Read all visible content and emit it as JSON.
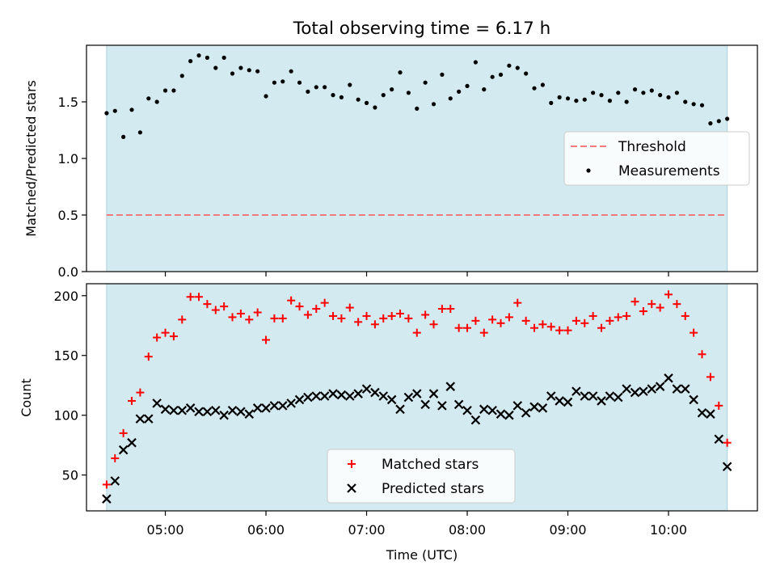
{
  "title": "Total observing time = 6.17 h",
  "colors": {
    "band": "#d3eaf0",
    "band_edge": "#aacfe0",
    "threshold": "#ef7b7b",
    "matched": "#ff0000",
    "predicted": "#000000",
    "measurements": "#000000"
  },
  "chart_data": [
    {
      "type": "scatter",
      "ylabel": "Matched/Predicted stars",
      "ylim": [
        0,
        2.0
      ],
      "yticks": [
        0.0,
        0.5,
        1.0,
        1.5
      ],
      "ytick_labels": [
        "0.0",
        "0.5",
        "1.0",
        "1.5"
      ],
      "xlim": [
        "04:13",
        "10:53"
      ],
      "observing_span": [
        "04:25",
        "10:35"
      ],
      "threshold": 0.5,
      "legend": {
        "placement": "center-right",
        "entries": [
          "Threshold",
          "Measurements"
        ]
      },
      "series": [
        {
          "name": "Measurements",
          "marker": "dot",
          "x": [
            "04:25",
            "04:30",
            "04:35",
            "04:40",
            "04:45",
            "04:50",
            "04:55",
            "05:00",
            "05:05",
            "05:10",
            "05:15",
            "05:20",
            "05:25",
            "05:30",
            "05:35",
            "05:40",
            "05:45",
            "05:50",
            "05:55",
            "06:00",
            "06:05",
            "06:10",
            "06:15",
            "06:20",
            "06:25",
            "06:30",
            "06:35",
            "06:40",
            "06:45",
            "06:50",
            "06:55",
            "07:00",
            "07:05",
            "07:10",
            "07:15",
            "07:20",
            "07:25",
            "07:30",
            "07:35",
            "07:40",
            "07:45",
            "07:50",
            "07:55",
            "08:00",
            "08:05",
            "08:10",
            "08:15",
            "08:20",
            "08:25",
            "08:30",
            "08:35",
            "08:40",
            "08:45",
            "08:50",
            "08:55",
            "09:00",
            "09:05",
            "09:10",
            "09:15",
            "09:20",
            "09:25",
            "09:30",
            "09:35",
            "09:40",
            "09:45",
            "09:50",
            "09:55",
            "10:00",
            "10:05",
            "10:10",
            "10:15",
            "10:20",
            "10:25",
            "10:30",
            "10:35"
          ],
          "y": [
            1.4,
            1.42,
            1.19,
            1.43,
            1.23,
            1.53,
            1.5,
            1.6,
            1.6,
            1.73,
            1.86,
            1.91,
            1.89,
            1.8,
            1.89,
            1.75,
            1.8,
            1.78,
            1.77,
            1.55,
            1.67,
            1.68,
            1.77,
            1.67,
            1.59,
            1.63,
            1.63,
            1.56,
            1.54,
            1.65,
            1.52,
            1.49,
            1.45,
            1.56,
            1.61,
            1.76,
            1.58,
            1.44,
            1.67,
            1.48,
            1.74,
            1.53,
            1.59,
            1.64,
            1.85,
            1.61,
            1.72,
            1.74,
            1.82,
            1.8,
            1.75,
            1.62,
            1.65,
            1.49,
            1.54,
            1.53,
            1.51,
            1.52,
            1.58,
            1.56,
            1.51,
            1.58,
            1.5,
            1.61,
            1.58,
            1.6,
            1.56,
            1.54,
            1.58,
            1.5,
            1.48,
            1.47,
            1.31,
            1.33,
            1.35
          ]
        }
      ]
    },
    {
      "type": "scatter",
      "xlabel": "Time (UTC)",
      "ylabel": "Count",
      "ylim": [
        20,
        210
      ],
      "yticks": [
        50,
        100,
        150,
        200
      ],
      "ytick_labels": [
        "50",
        "100",
        "150",
        "200"
      ],
      "xlim": [
        "04:13",
        "10:53"
      ],
      "xticks": [
        "05:00",
        "06:00",
        "07:00",
        "08:00",
        "09:00",
        "10:00"
      ],
      "xtick_labels": [
        "05:00",
        "06:00",
        "07:00",
        "08:00",
        "09:00",
        "10:00"
      ],
      "observing_span": [
        "04:25",
        "10:35"
      ],
      "legend": {
        "placement": "lower-center",
        "entries": [
          "Matched stars",
          "Predicted stars"
        ]
      },
      "series": [
        {
          "name": "Matched stars",
          "marker": "plus",
          "x": [
            "04:25",
            "04:30",
            "04:35",
            "04:40",
            "04:45",
            "04:50",
            "04:55",
            "05:00",
            "05:05",
            "05:10",
            "05:15",
            "05:20",
            "05:25",
            "05:30",
            "05:35",
            "05:40",
            "05:45",
            "05:50",
            "05:55",
            "06:00",
            "06:05",
            "06:10",
            "06:15",
            "06:20",
            "06:25",
            "06:30",
            "06:35",
            "06:40",
            "06:45",
            "06:50",
            "06:55",
            "07:00",
            "07:05",
            "07:10",
            "07:15",
            "07:20",
            "07:25",
            "07:30",
            "07:35",
            "07:40",
            "07:45",
            "07:50",
            "07:55",
            "08:00",
            "08:05",
            "08:10",
            "08:15",
            "08:20",
            "08:25",
            "08:30",
            "08:35",
            "08:40",
            "08:45",
            "08:50",
            "08:55",
            "09:00",
            "09:05",
            "09:10",
            "09:15",
            "09:20",
            "09:25",
            "09:30",
            "09:35",
            "09:40",
            "09:45",
            "09:50",
            "09:55",
            "10:00",
            "10:05",
            "10:10",
            "10:15",
            "10:20",
            "10:25",
            "10:30",
            "10:35"
          ],
          "y": [
            42,
            64,
            85,
            112,
            119,
            149,
            165,
            169,
            166,
            180,
            199,
            199,
            193,
            188,
            191,
            182,
            185,
            180,
            186,
            163,
            181,
            181,
            196,
            191,
            184,
            189,
            194,
            183,
            181,
            190,
            178,
            183,
            176,
            181,
            183,
            185,
            181,
            169,
            184,
            176,
            189,
            189,
            173,
            173,
            179,
            169,
            180,
            177,
            182,
            194,
            179,
            173,
            176,
            174,
            171,
            171,
            179,
            177,
            183,
            173,
            179,
            182,
            183,
            195,
            187,
            193,
            190,
            201,
            193,
            183,
            169,
            151,
            132,
            108,
            77
          ]
        },
        {
          "name": "Predicted stars",
          "marker": "x",
          "x": [
            "04:25",
            "04:30",
            "04:35",
            "04:40",
            "04:45",
            "04:50",
            "04:55",
            "05:00",
            "05:05",
            "05:10",
            "05:15",
            "05:20",
            "05:25",
            "05:30",
            "05:35",
            "05:40",
            "05:45",
            "05:50",
            "05:55",
            "06:00",
            "06:05",
            "06:10",
            "06:15",
            "06:20",
            "06:25",
            "06:30",
            "06:35",
            "06:40",
            "06:45",
            "06:50",
            "06:55",
            "07:00",
            "07:05",
            "07:10",
            "07:15",
            "07:20",
            "07:25",
            "07:30",
            "07:35",
            "07:40",
            "07:45",
            "07:50",
            "07:55",
            "08:00",
            "08:05",
            "08:10",
            "08:15",
            "08:20",
            "08:25",
            "08:30",
            "08:35",
            "08:40",
            "08:45",
            "08:50",
            "08:55",
            "09:00",
            "09:05",
            "09:10",
            "09:15",
            "09:20",
            "09:25",
            "09:30",
            "09:35",
            "09:40",
            "09:45",
            "09:50",
            "09:55",
            "10:00",
            "10:05",
            "10:10",
            "10:15",
            "10:20",
            "10:25",
            "10:30",
            "10:35"
          ],
          "y": [
            30,
            45,
            71,
            77,
            97,
            97,
            110,
            105,
            104,
            104,
            106,
            103,
            103,
            104,
            100,
            104,
            103,
            101,
            106,
            106,
            108,
            108,
            110,
            113,
            115,
            116,
            116,
            118,
            117,
            116,
            118,
            122,
            119,
            116,
            113,
            105,
            115,
            118,
            109,
            118,
            108,
            124,
            109,
            104,
            96,
            105,
            104,
            101,
            100,
            108,
            102,
            107,
            106,
            116,
            112,
            111,
            120,
            116,
            116,
            112,
            116,
            115,
            122,
            119,
            120,
            122,
            124,
            131,
            122,
            122,
            113,
            102,
            101,
            80,
            57
          ]
        }
      ]
    }
  ]
}
